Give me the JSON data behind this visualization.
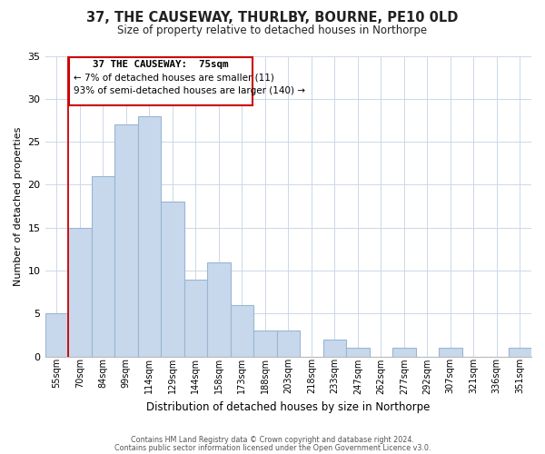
{
  "title1": "37, THE CAUSEWAY, THURLBY, BOURNE, PE10 0LD",
  "title2": "Size of property relative to detached houses in Northorpe",
  "xlabel": "Distribution of detached houses by size in Northorpe",
  "ylabel": "Number of detached properties",
  "bin_labels": [
    "55sqm",
    "70sqm",
    "84sqm",
    "99sqm",
    "114sqm",
    "129sqm",
    "144sqm",
    "158sqm",
    "173sqm",
    "188sqm",
    "203sqm",
    "218sqm",
    "233sqm",
    "247sqm",
    "262sqm",
    "277sqm",
    "292sqm",
    "307sqm",
    "321sqm",
    "336sqm",
    "351sqm"
  ],
  "bar_values": [
    5,
    15,
    21,
    27,
    28,
    18,
    9,
    11,
    6,
    3,
    3,
    0,
    2,
    1,
    0,
    1,
    0,
    1,
    0,
    0,
    1
  ],
  "bar_color": "#c8d8ec",
  "bar_edge_color": "#9ab5d4",
  "ylim": [
    0,
    35
  ],
  "yticks": [
    0,
    5,
    10,
    15,
    20,
    25,
    30,
    35
  ],
  "annotation_title": "37 THE CAUSEWAY:  75sqm",
  "annotation_line1": "← 7% of detached houses are smaller (11)",
  "annotation_line2": "93% of semi-detached houses are larger (140) →",
  "red_line_bin_index": 1,
  "footer1": "Contains HM Land Registry data © Crown copyright and database right 2024.",
  "footer2": "Contains public sector information licensed under the Open Government Licence v3.0."
}
